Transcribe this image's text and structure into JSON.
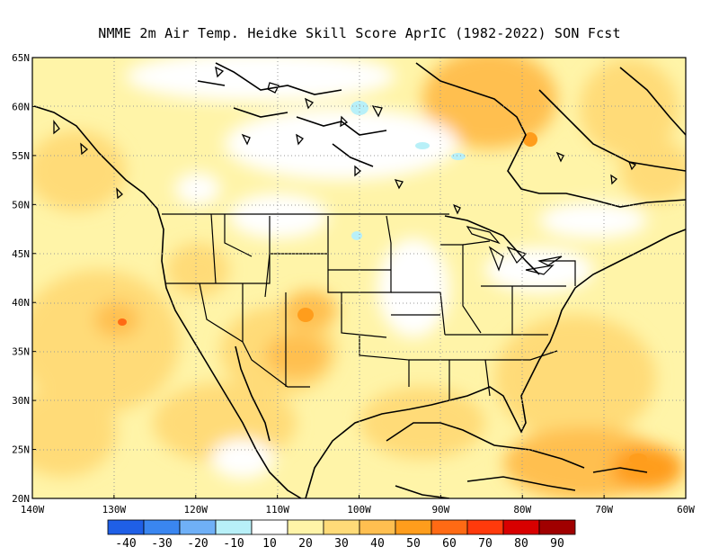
{
  "title": "NMME  2m Air Temp. Heidke Skill Score AprIC (1982-2022) SON Fcst",
  "map": {
    "lon_range": [
      -140,
      -60
    ],
    "lat_range": [
      20,
      65
    ],
    "lat_labels": [
      "65N",
      "60N",
      "55N",
      "50N",
      "45N",
      "40N",
      "35N",
      "30N",
      "25N",
      "20N"
    ],
    "lon_labels": [
      "140W",
      "130W",
      "120W",
      "110W",
      "100W",
      "90W",
      "80W",
      "70W",
      "60W"
    ]
  },
  "colorbar": {
    "labels": [
      "-40",
      "-30",
      "-20",
      "-10",
      "10",
      "20",
      "30",
      "40",
      "50",
      "60",
      "70",
      "80",
      "90"
    ],
    "colors": [
      "#1f5fe6",
      "#3a86f0",
      "#6fb0f7",
      "#b8f0f8",
      "#ffffff",
      "#fff4a8",
      "#ffdb78",
      "#ffbf50",
      "#ff9d1c",
      "#ff6a14",
      "#ff3a0c",
      "#d80000",
      "#a00000"
    ]
  }
}
